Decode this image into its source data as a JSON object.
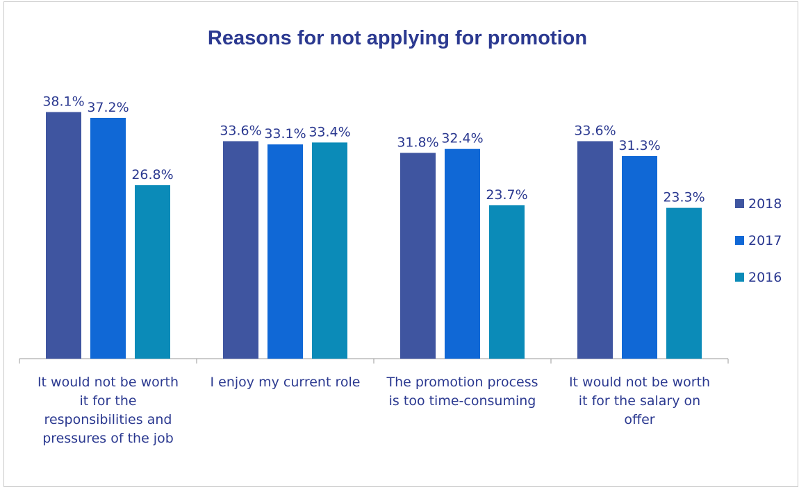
{
  "chart_data": {
    "type": "bar",
    "title": "Reasons for not applying for promotion",
    "xlabel": "",
    "ylabel": "",
    "ylim": [
      0,
      40
    ],
    "grid": false,
    "legend_position": "right",
    "categories": [
      "It would not be worth it for the responsibilities and pressures of the job",
      "I enjoy my current role",
      "The promotion process is too time-consuming",
      "It would not be worth it for the salary on offer"
    ],
    "category_lines": [
      [
        "It would not be worth",
        "it for the",
        "responsibilities and",
        "pressures of the job"
      ],
      [
        "I enjoy my current role"
      ],
      [
        "The promotion process",
        "is too time-consuming"
      ],
      [
        "It would not be worth",
        "it for the salary on",
        "offer"
      ]
    ],
    "series": [
      {
        "name": "2018",
        "color": "#3f55a0",
        "values": [
          38.1,
          33.6,
          31.8,
          33.6
        ],
        "labels": [
          "38.1%",
          "33.6%",
          "31.8%",
          "33.6%"
        ]
      },
      {
        "name": "2017",
        "color": "#1068d6",
        "values": [
          37.2,
          33.1,
          32.4,
          31.3
        ],
        "labels": [
          "37.2%",
          "33.1%",
          "32.4%",
          "31.3%"
        ]
      },
      {
        "name": "2016",
        "color": "#0b8bb8",
        "values": [
          26.8,
          33.4,
          23.7,
          23.3
        ],
        "labels": [
          "26.8%",
          "33.4%",
          "23.7%",
          "23.3%"
        ]
      }
    ]
  }
}
